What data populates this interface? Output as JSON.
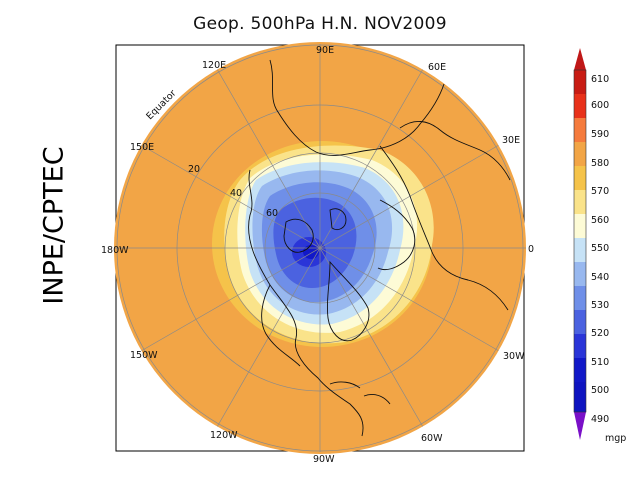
{
  "title": "Geop. 500hPa H.N. NOV2009",
  "side_label": "INPE/CPTEC",
  "map_labels": {
    "lon_90e": "90E",
    "lon_60e": "60E",
    "lon_30e": "30E",
    "lon_0": "0",
    "lon_30w": "30W",
    "lon_60w": "60W",
    "lon_90w": "90W",
    "lon_120w": "120W",
    "lon_150w": "150W",
    "lon_180w": "180W",
    "lon_150e": "150E",
    "lon_120e": "120E",
    "equator": "Equator",
    "lat_20": "20",
    "lat_40": "40",
    "lat_60": "60"
  },
  "colorbar": {
    "unit": "mgp",
    "levels": [
      "610",
      "600",
      "590",
      "580",
      "570",
      "560",
      "550",
      "540",
      "530",
      "520",
      "510",
      "500",
      "490"
    ],
    "colors": {
      "c600": "#e8311a",
      "c590": "#f57b3d",
      "c580": "#f2a546",
      "c570": "#f5c34a",
      "c560": "#fae38a",
      "c550": "#fdfbd6",
      "c540": "#c6e2f6",
      "c530": "#98b8ef",
      "c520": "#6f8fe8",
      "c510": "#4b62e0",
      "c500": "#2a35d8",
      "c490": "#1118c8",
      "arrow_top": "#c01818",
      "arrow_bottom": "#7a10c8"
    }
  },
  "chart_data": {
    "type": "heatmap",
    "title": "Geop. 500hPa H.N. NOV2009",
    "variable": "500 hPa geopotential height",
    "unit": "mgp",
    "projection": "north polar stereographic",
    "period": "NOV2009",
    "hemisphere": "H.N.",
    "color_levels": [
      490,
      500,
      510,
      520,
      530,
      540,
      550,
      560,
      570,
      580,
      590,
      600,
      610
    ],
    "longitude_labels": [
      "90E",
      "60E",
      "30E",
      "0",
      "30W",
      "60W",
      "90W",
      "120W",
      "150W",
      "180W",
      "150E",
      "120E"
    ],
    "latitude_labels": [
      "Equator",
      "20",
      "40",
      "60"
    ]
  }
}
